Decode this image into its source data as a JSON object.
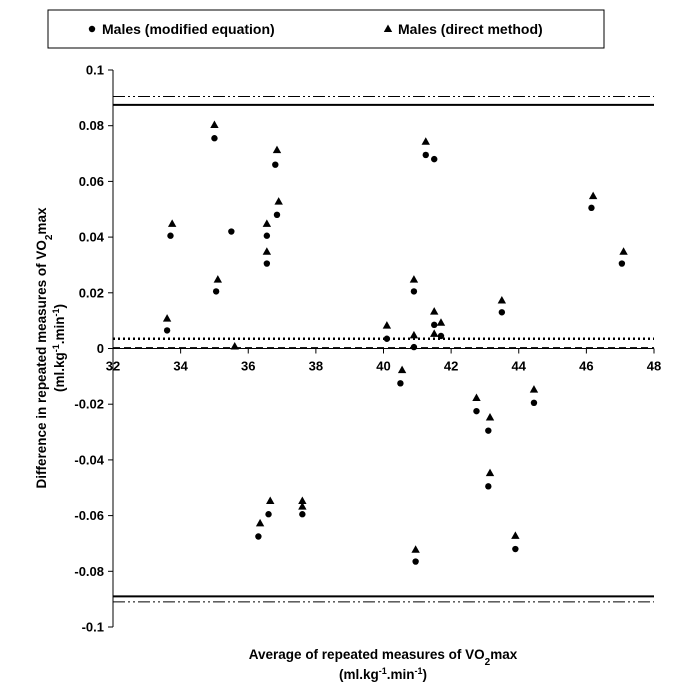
{
  "chart_data": {
    "type": "scatter",
    "title": "",
    "xlabel": {
      "line1_pre": "Average of repeated measures of VO",
      "line1_sub": "2",
      "line1_post": "max",
      "line2_pre": "(ml.kg",
      "line2_sup1": "-1",
      "line2_mid": ".min",
      "line2_sup2": "-1",
      "line2_post": ")"
    },
    "ylabel": {
      "line1_pre": "Difference in repeated measures of VO",
      "line1_sub": "2",
      "line1_post": "max",
      "line2_pre": "(ml.kg",
      "line2_sup1": "-1",
      "line2_mid": ".min",
      "line2_sup2": "-1",
      "line2_post": ")"
    },
    "xlim": [
      32,
      48
    ],
    "ylim": [
      -0.1,
      0.1
    ],
    "x_ticks": [
      "32",
      "34",
      "36",
      "38",
      "40",
      "42",
      "44",
      "46",
      "48"
    ],
    "y_ticks": [
      "0.1",
      "0.08",
      "0.06",
      "0.04",
      "0.02",
      "0",
      "-0.02",
      "-0.04",
      "-0.06",
      "-0.08",
      "-0.1"
    ],
    "grid": false,
    "legend_position": "top",
    "reference_lines": [
      {
        "style": "solid",
        "y": 0.0875
      },
      {
        "style": "solid",
        "y": -0.089
      },
      {
        "style": "dash-dot-dot",
        "y": 0.0905
      },
      {
        "style": "dash-dot-dot",
        "y": -0.091
      },
      {
        "style": "dotted",
        "y": 0.0035
      },
      {
        "style": "dashed",
        "y": 0.0002
      }
    ],
    "series": [
      {
        "name": "Males (modified equation)",
        "marker": "circle",
        "points": [
          [
            33.6,
            0.0065
          ],
          [
            33.7,
            0.0405
          ],
          [
            35.0,
            0.0755
          ],
          [
            35.05,
            0.0205
          ],
          [
            35.5,
            0.042
          ],
          [
            36.3,
            -0.0675
          ],
          [
            36.55,
            0.0305
          ],
          [
            36.55,
            0.0405
          ],
          [
            36.6,
            -0.0595
          ],
          [
            36.8,
            0.066
          ],
          [
            36.85,
            0.048
          ],
          [
            37.6,
            -0.0595
          ],
          [
            40.1,
            0.0035
          ],
          [
            40.5,
            -0.0125
          ],
          [
            40.9,
            0.0205
          ],
          [
            40.9,
            0.0005
          ],
          [
            40.95,
            -0.0765
          ],
          [
            41.25,
            0.0695
          ],
          [
            41.5,
            0.068
          ],
          [
            41.5,
            0.0085
          ],
          [
            41.7,
            0.0045
          ],
          [
            42.75,
            -0.0225
          ],
          [
            43.1,
            -0.0295
          ],
          [
            43.1,
            -0.0495
          ],
          [
            43.5,
            0.013
          ],
          [
            43.9,
            -0.072
          ],
          [
            44.45,
            -0.0195
          ],
          [
            46.15,
            0.0505
          ],
          [
            47.05,
            0.0305
          ]
        ]
      },
      {
        "name": "Males (direct method)",
        "marker": "triangle",
        "points": [
          [
            33.6,
            0.011
          ],
          [
            33.75,
            0.045
          ],
          [
            35.0,
            0.0805
          ],
          [
            35.1,
            0.025
          ],
          [
            35.6,
            0.001
          ],
          [
            36.35,
            -0.0625
          ],
          [
            36.55,
            0.035
          ],
          [
            36.55,
            0.045
          ],
          [
            36.65,
            -0.0545
          ],
          [
            36.85,
            0.0715
          ],
          [
            36.9,
            0.053
          ],
          [
            37.6,
            -0.0545
          ],
          [
            37.6,
            -0.0565
          ],
          [
            40.1,
            0.0085
          ],
          [
            40.55,
            -0.0075
          ],
          [
            40.9,
            0.025
          ],
          [
            40.9,
            0.005
          ],
          [
            40.95,
            -0.072
          ],
          [
            41.25,
            0.0745
          ],
          [
            41.5,
            0.0135
          ],
          [
            41.5,
            0.0055
          ],
          [
            41.7,
            0.0095
          ],
          [
            42.75,
            -0.0175
          ],
          [
            43.15,
            -0.0245
          ],
          [
            43.15,
            -0.0445
          ],
          [
            43.5,
            0.0175
          ],
          [
            43.9,
            -0.067
          ],
          [
            44.45,
            -0.0145
          ],
          [
            46.2,
            0.055
          ],
          [
            47.1,
            0.035
          ]
        ]
      }
    ]
  }
}
